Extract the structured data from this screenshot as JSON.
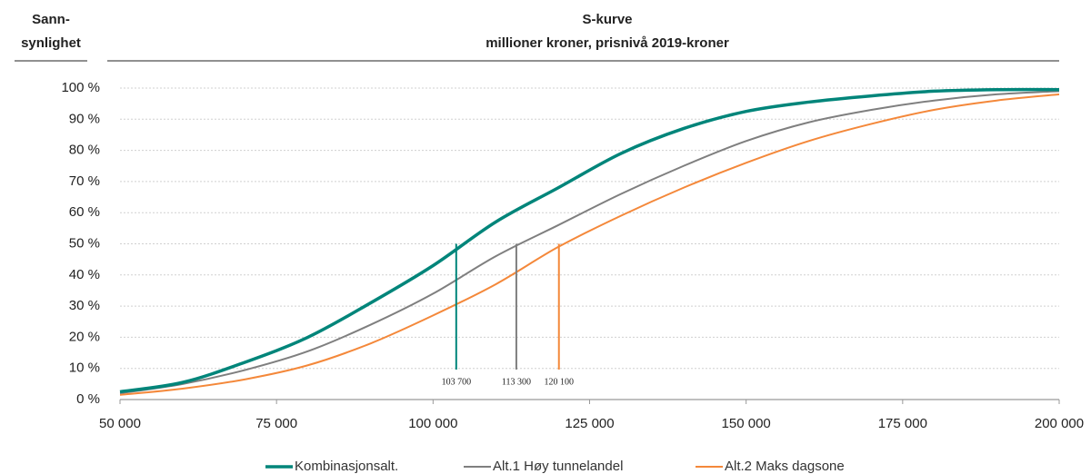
{
  "chart_data": {
    "type": "line",
    "title": "S-kurve",
    "subtitle": "millioner kroner, prisnivå 2019-kroner",
    "y_label": [
      "Sann-",
      "synlighet"
    ],
    "x": [
      50000,
      60000,
      70000,
      80000,
      90000,
      100000,
      110000,
      120000,
      130000,
      140000,
      150000,
      160000,
      170000,
      180000,
      190000,
      200000
    ],
    "series": [
      {
        "name": "Kombinasjonsalt.",
        "color": "#00857a",
        "width": 3.5,
        "values": [
          2.5,
          5.5,
          12,
          20,
          31,
          43,
          57,
          68,
          79,
          87,
          92.5,
          95.5,
          97.5,
          99,
          99.5,
          99.5
        ]
      },
      {
        "name": "Alt.1 Høy tunnelandel",
        "color": "#7f7f7f",
        "width": 2,
        "values": [
          2,
          5,
          9.5,
          15.5,
          24,
          34,
          46,
          56,
          66,
          75,
          83,
          89,
          93,
          96,
          98,
          99
        ]
      },
      {
        "name": "Alt.2 Maks dagsone",
        "color": "#f4883a",
        "width": 2,
        "values": [
          1.5,
          3.5,
          6.5,
          11,
          18,
          27,
          37,
          49,
          59,
          68,
          76,
          83,
          88.5,
          93,
          96,
          98
        ]
      }
    ],
    "annotations": [
      {
        "x": 103700,
        "y": 50,
        "label": "103 700",
        "color": "#00857a"
      },
      {
        "x": 113300,
        "y": 50,
        "label": "113 300",
        "color": "#7f7f7f"
      },
      {
        "x": 120100,
        "y": 50,
        "label": "120 100",
        "color": "#f4883a"
      }
    ],
    "xlim": [
      50000,
      200000
    ],
    "xticks": [
      {
        "value": 50000,
        "label": "50 000"
      },
      {
        "value": 75000,
        "label": "75 000"
      },
      {
        "value": 100000,
        "label": "100 000"
      },
      {
        "value": 125000,
        "label": "125 000"
      },
      {
        "value": 150000,
        "label": "150 000"
      },
      {
        "value": 175000,
        "label": "175 000"
      },
      {
        "value": 200000,
        "label": "200 000"
      }
    ],
    "ylim": [
      0,
      100
    ],
    "yticks": [
      {
        "value": 0,
        "label": "0 %"
      },
      {
        "value": 10,
        "label": "10 %"
      },
      {
        "value": 20,
        "label": "20 %"
      },
      {
        "value": 30,
        "label": "30 %"
      },
      {
        "value": 40,
        "label": "40 %"
      },
      {
        "value": 50,
        "label": "50 %"
      },
      {
        "value": 60,
        "label": "60 %"
      },
      {
        "value": 70,
        "label": "70 %"
      },
      {
        "value": 80,
        "label": "80 %"
      },
      {
        "value": 90,
        "label": "90 %"
      },
      {
        "value": 100,
        "label": "100 %"
      }
    ],
    "grid": true,
    "legend": "bottom"
  }
}
